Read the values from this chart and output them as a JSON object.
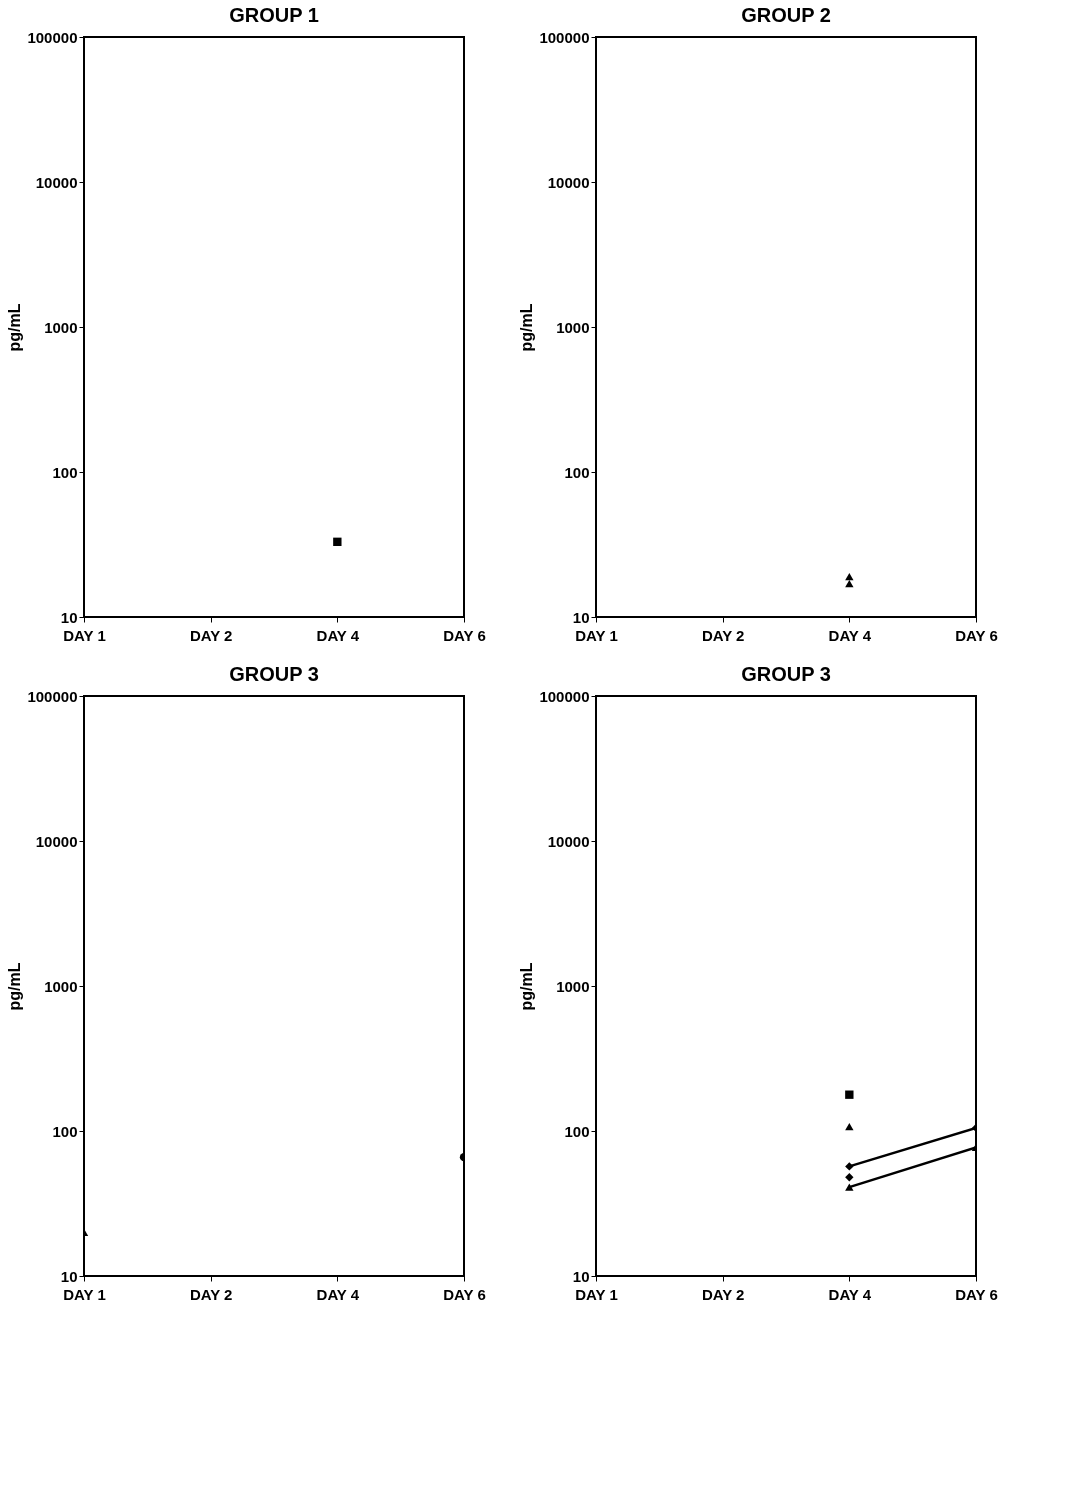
{
  "chart_data": [
    {
      "type": "line",
      "title": "GROUP 1",
      "ylabel": "pg/mL",
      "categories": [
        "DAY 1",
        "DAY 2",
        "DAY 4",
        "DAY 6"
      ],
      "log": true,
      "ylim": [
        10,
        100000
      ],
      "yticks": [
        10,
        100,
        1000,
        10000,
        100000
      ],
      "grid": false,
      "series": [
        {
          "color": "#000000",
          "marker": "square",
          "values": [
            null,
            null,
            33,
            null
          ]
        }
      ]
    },
    {
      "type": "line",
      "title": "GROUP 2",
      "ylabel": "pg/mL",
      "categories": [
        "DAY 1",
        "DAY 2",
        "DAY 4",
        "DAY 6"
      ],
      "log": true,
      "ylim": [
        10,
        100000
      ],
      "yticks": [
        10,
        100,
        1000,
        10000,
        100000
      ],
      "grid": false,
      "series": [
        {
          "color": "#000000",
          "marker": "triangle",
          "values": [
            null,
            null,
            19,
            null
          ]
        },
        {
          "color": "#000000",
          "marker": "triangle",
          "values": [
            null,
            null,
            17,
            null
          ]
        }
      ]
    },
    {
      "type": "line",
      "title": "GROUP 3",
      "ylabel": "pg/mL",
      "categories": [
        "DAY 1",
        "DAY 2",
        "DAY 4",
        "DAY 6"
      ],
      "log": true,
      "ylim": [
        10,
        100000
      ],
      "yticks": [
        10,
        100,
        1000,
        10000,
        100000
      ],
      "grid": false,
      "series": [
        {
          "color": "#000000",
          "marker": "triangle",
          "values": [
            20,
            null,
            null,
            null
          ]
        },
        {
          "color": "#000000",
          "marker": "circle",
          "values": [
            null,
            null,
            null,
            66
          ]
        }
      ]
    },
    {
      "type": "line",
      "title": "GROUP 3",
      "ylabel": "pg/mL",
      "categories": [
        "DAY 1",
        "DAY 2",
        "DAY 4",
        "DAY 6"
      ],
      "log": true,
      "ylim": [
        10,
        100000
      ],
      "yticks": [
        10,
        100,
        1000,
        10000,
        100000
      ],
      "grid": false,
      "series": [
        {
          "color": "#000000",
          "marker": "square",
          "values": [
            null,
            null,
            178,
            null
          ]
        },
        {
          "color": "#000000",
          "marker": "triangle",
          "values": [
            null,
            null,
            107,
            null
          ]
        },
        {
          "color": "#000000",
          "marker": "diamond",
          "values": [
            null,
            null,
            57,
            105
          ]
        },
        {
          "color": "#000000",
          "marker": "diamond",
          "values": [
            null,
            null,
            48,
            null
          ]
        },
        {
          "color": "#000000",
          "marker": "triangle",
          "values": [
            null,
            null,
            41,
            77
          ]
        }
      ]
    }
  ]
}
